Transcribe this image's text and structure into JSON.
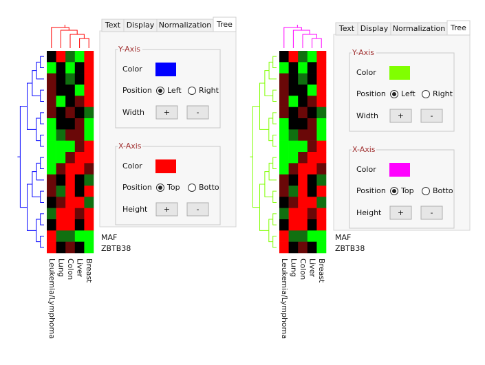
{
  "panels": [
    {
      "tabs": [
        "Text",
        "Display",
        "Normalization",
        "Tree"
      ],
      "active_tab": 3,
      "y_axis": {
        "title": "Y-Axis",
        "color_label": "Color",
        "color": "#0000ff",
        "position_label": "Position",
        "options": [
          "Left",
          "Right"
        ],
        "selected": 0,
        "size_label": "Width",
        "buttons": [
          "+",
          "-"
        ]
      },
      "x_axis": {
        "title": "X-Axis",
        "color_label": "Color",
        "color": "#ff0000",
        "position_label": "Position",
        "options": [
          "Top",
          "Botto"
        ],
        "selected": 0,
        "size_label": "Height",
        "buttons": [
          "+",
          "-"
        ]
      },
      "row_labels": [
        "MAF",
        "ZBTB38"
      ],
      "column_labels": [
        "Leukemia/Lymphoma",
        "Lung",
        "Colon",
        "Liver",
        "Breast"
      ]
    },
    {
      "tabs": [
        "Text",
        "Display",
        "Normalization",
        "Tree"
      ],
      "active_tab": 3,
      "y_axis": {
        "title": "Y-Axis",
        "color_label": "Color",
        "color": "#80ff00",
        "position_label": "Position",
        "options": [
          "Left",
          "Right"
        ],
        "selected": 0,
        "size_label": "Width",
        "buttons": [
          "+",
          "-"
        ]
      },
      "x_axis": {
        "title": "X-Axis",
        "color_label": "Color",
        "color": "#ff00ff",
        "position_label": "Position",
        "options": [
          "Top",
          "Botto"
        ],
        "selected": 0,
        "size_label": "Height",
        "buttons": [
          "+",
          "-"
        ]
      },
      "row_labels": [
        "MAF",
        "ZBTB38"
      ],
      "column_labels": [
        "Leukemia/Lymphoma",
        "Lung",
        "Colon",
        "Liver",
        "Breast"
      ]
    }
  ]
}
